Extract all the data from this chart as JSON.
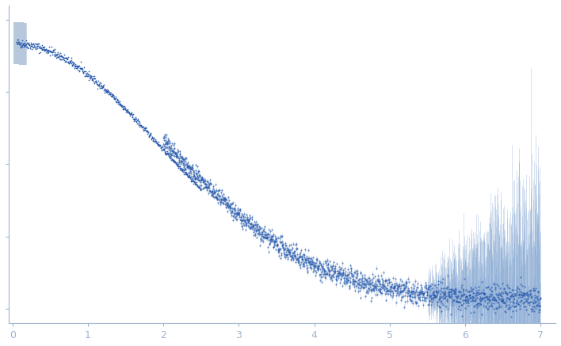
{
  "title": "",
  "xlabel": "",
  "ylabel": "",
  "xlim": [
    -0.05,
    7.2
  ],
  "ylim": [
    -0.05,
    1.05
  ],
  "x_ticks": [
    0,
    1,
    2,
    3,
    4,
    5,
    6,
    7
  ],
  "background_color": "#ffffff",
  "axes_color": "#a0b4d0",
  "tick_color": "#a0b4d0",
  "data_color": "#2255aa",
  "error_color": "#7099cc",
  "grey_color": "#b8c8dc",
  "figsize": [
    7.08,
    4.37
  ],
  "dpi": 100
}
